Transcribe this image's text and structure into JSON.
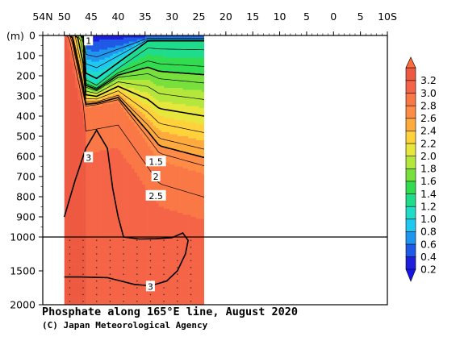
{
  "chart_data": {
    "type": "heatmap",
    "title": "Phosphate along 165°E line, August 2020",
    "credit": "(C) Japan Meteorological Agency",
    "y_unit_label": "(m)",
    "x_tick_labels": [
      "54N",
      "50",
      "45",
      "40",
      "35",
      "30",
      "25",
      "20",
      "15",
      "10",
      "5",
      "0",
      "5",
      "10S"
    ],
    "x_ticks_lat": [
      54,
      50,
      45,
      40,
      35,
      30,
      25,
      20,
      15,
      10,
      5,
      0,
      -5,
      -10
    ],
    "x_range_lat": [
      54,
      -10
    ],
    "data_lat_range": [
      50,
      24
    ],
    "y_tick_labels": [
      "0",
      "100",
      "200",
      "300",
      "400",
      "500",
      "600",
      "700",
      "800",
      "900",
      "1000",
      "1500",
      "2000"
    ],
    "y_ticks_depth": [
      0,
      100,
      200,
      300,
      400,
      500,
      600,
      700,
      800,
      900,
      1000,
      1500,
      2000
    ],
    "y_scale_break_depth": 1000,
    "colorbar": {
      "levels": [
        0.2,
        0.4,
        0.6,
        0.8,
        1.0,
        1.2,
        1.4,
        1.6,
        1.8,
        2.0,
        2.2,
        2.4,
        2.6,
        2.8,
        3.0,
        3.2
      ],
      "labels": [
        "0.2",
        "0.4",
        "0.6",
        "0.8",
        "1.0",
        "1.2",
        "1.4",
        "1.6",
        "1.8",
        "2.0",
        "2.2",
        "2.4",
        "2.6",
        "2.8",
        "3.0",
        "3.2"
      ],
      "colors": [
        "#1e1edc",
        "#1e5ae6",
        "#1e96f0",
        "#1ec8f0",
        "#1edcc8",
        "#1edc8c",
        "#32dc50",
        "#78e03c",
        "#b4e63c",
        "#e6e63c",
        "#ffd23c",
        "#ffaa3c",
        "#ff8c46",
        "#fa7846",
        "#f56446",
        "#ee5a41"
      ]
    },
    "contour_labels": [
      {
        "text": "1",
        "lat": 45.5,
        "depth": 25
      },
      {
        "text": "1.5",
        "lat": 33,
        "depth": 625
      },
      {
        "text": "2",
        "lat": 33,
        "depth": 700
      },
      {
        "text": "2.5",
        "lat": 33,
        "depth": 795
      },
      {
        "text": "3",
        "lat": 45.5,
        "depth": 605
      },
      {
        "text": "3",
        "lat": 34,
        "depth": 1730
      }
    ]
  }
}
